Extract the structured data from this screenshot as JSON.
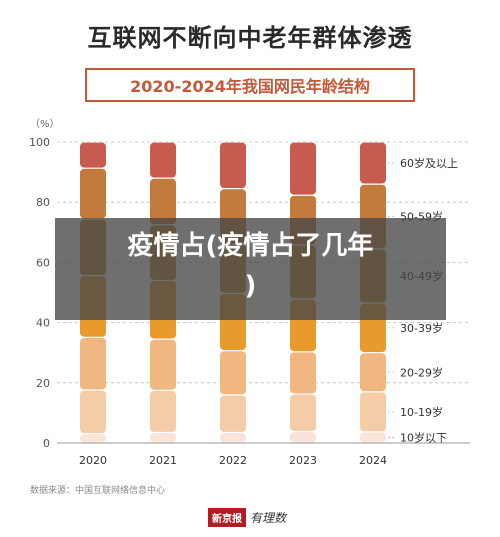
{
  "title": "互联网不断向中老年群体渗透",
  "subtitle": "2020-2024年我国网民年龄结构",
  "source": "数据来源：中国互联网络信息中心",
  "brand": {
    "main": "新京报",
    "sub": "有理数"
  },
  "overlay": {
    "line1": "疫情占(疫情占了几年",
    "line2": ")"
  },
  "chart_data": {
    "type": "bar",
    "stacked": true,
    "y_unit": "（%）",
    "ylim": [
      0,
      100
    ],
    "yticks": [
      0,
      20,
      40,
      60,
      80,
      100
    ],
    "categories": [
      "2020",
      "2021",
      "2022",
      "2023",
      "2024"
    ],
    "series": [
      {
        "name": "10岁以下",
        "color": "#f8e4d8",
        "values": [
          3.1,
          3.5,
          3.5,
          3.8,
          3.7
        ]
      },
      {
        "name": "10-19岁",
        "color": "#f4cda8",
        "values": [
          14.5,
          14.0,
          12.5,
          12.5,
          13.3
        ]
      },
      {
        "name": "20-29岁",
        "color": "#f0b880",
        "values": [
          17.5,
          17.0,
          14.7,
          14.0,
          13.0
        ]
      },
      {
        "name": "30-39岁",
        "color": "#e89a2c",
        "values": [
          20.5,
          19.5,
          19.0,
          17.5,
          16.5
        ]
      },
      {
        "name": "40-49岁",
        "color": "#c0862e",
        "values": [
          18.8,
          18.5,
          16.3,
          18.0,
          18.0
        ]
      },
      {
        "name": "50-59岁",
        "color": "#c27a3d",
        "values": [
          16.9,
          15.5,
          18.5,
          16.5,
          21.5
        ]
      },
      {
        "name": "60岁及以上",
        "color": "#c75b4f",
        "values": [
          8.7,
          12.0,
          15.5,
          17.7,
          14.0
        ]
      }
    ]
  }
}
